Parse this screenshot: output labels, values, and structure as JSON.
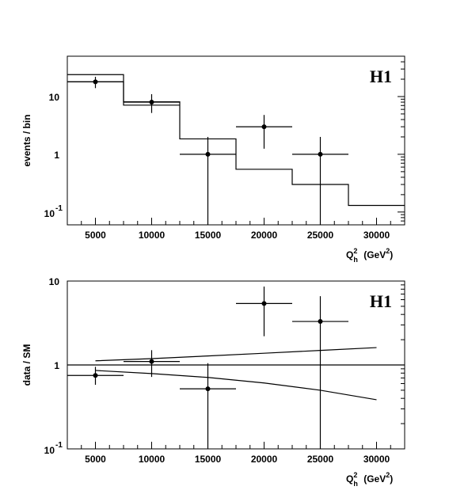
{
  "chart_data": [
    {
      "type": "scatter",
      "panel": "top",
      "experiment_label": "H1",
      "xlabel": "Q",
      "xlabel_sup": "2",
      "xlabel_sub": "h",
      "xlabel_units": "(GeV",
      "xlabel_units_sup": "2",
      "xlabel_units_end": ")",
      "ylabel": "events / bin",
      "xlim": [
        2500,
        32500
      ],
      "ylim": [
        0.06,
        50
      ],
      "yscale": "log",
      "xticks": [
        5000,
        10000,
        15000,
        20000,
        25000,
        30000
      ],
      "xtick_labels": [
        "5000",
        "10000",
        "15000",
        "20000",
        "25000",
        "30000"
      ],
      "yticks": [
        {
          "value": 10,
          "label": "10",
          "exp": ""
        },
        {
          "value": 1,
          "label": "1",
          "exp": ""
        },
        {
          "value": 0.1,
          "label": "10",
          "exp": "-1"
        }
      ],
      "points": [
        {
          "x": 5000,
          "y": 18,
          "xerr": 2500,
          "ylo": 14,
          "yhi": 22
        },
        {
          "x": 10000,
          "y": 8,
          "xerr": 2500,
          "ylo": 5.2,
          "yhi": 11
        },
        {
          "x": 15000,
          "y": 1,
          "xerr": 2500,
          "ylo": 0.06,
          "yhi": 2.0
        },
        {
          "x": 20000,
          "y": 3,
          "xerr": 2500,
          "ylo": 1.25,
          "yhi": 4.8
        },
        {
          "x": 25000,
          "y": 1,
          "xerr": 2500,
          "ylo": 0.06,
          "yhi": 2.0
        }
      ],
      "histograms": [
        {
          "edges": [
            2500,
            7500,
            12500,
            17500,
            22500,
            27500,
            32500
          ],
          "values": [
            24,
            8.1,
            1.85,
            0.55,
            0.3,
            0.13
          ]
        },
        {
          "edges": [
            2500,
            7500,
            12500
          ],
          "values": [
            18,
            7.1
          ]
        }
      ]
    },
    {
      "type": "scatter",
      "panel": "bottom",
      "experiment_label": "H1",
      "xlabel": "Q",
      "xlabel_sup": "2",
      "xlabel_sub": "h",
      "xlabel_units": "(GeV",
      "xlabel_units_sup": "2",
      "xlabel_units_end": ")",
      "ylabel": "data / SM",
      "xlim": [
        2500,
        32500
      ],
      "ylim": [
        0.1,
        10
      ],
      "yscale": "log",
      "xticks": [
        5000,
        10000,
        15000,
        20000,
        25000,
        30000
      ],
      "xtick_labels": [
        "5000",
        "10000",
        "15000",
        "20000",
        "25000",
        "30000"
      ],
      "yticks": [
        {
          "value": 10,
          "label": "10",
          "exp": ""
        },
        {
          "value": 1,
          "label": "1",
          "exp": ""
        },
        {
          "value": 0.1,
          "label": "10",
          "exp": "-1"
        }
      ],
      "points": [
        {
          "x": 5000,
          "y": 0.75,
          "xerr": 2500,
          "ylo": 0.58,
          "yhi": 0.95
        },
        {
          "x": 10000,
          "y": 1.1,
          "xerr": 2500,
          "ylo": 0.72,
          "yhi": 1.5
        },
        {
          "x": 15000,
          "y": 0.52,
          "xerr": 2500,
          "ylo": 0.1,
          "yhi": 1.05
        },
        {
          "x": 20000,
          "y": 5.4,
          "xerr": 2500,
          "ylo": 2.2,
          "yhi": 8.6
        },
        {
          "x": 25000,
          "y": 3.3,
          "xerr": 2500,
          "ylo": 0.1,
          "yhi": 6.6
        }
      ],
      "reference_line": 1,
      "band": {
        "x": [
          5000,
          10000,
          15000,
          20000,
          25000,
          30000
        ],
        "upper": [
          1.12,
          1.19,
          1.28,
          1.38,
          1.49,
          1.61
        ],
        "lower": [
          0.86,
          0.79,
          0.71,
          0.61,
          0.5,
          0.385
        ]
      }
    }
  ]
}
